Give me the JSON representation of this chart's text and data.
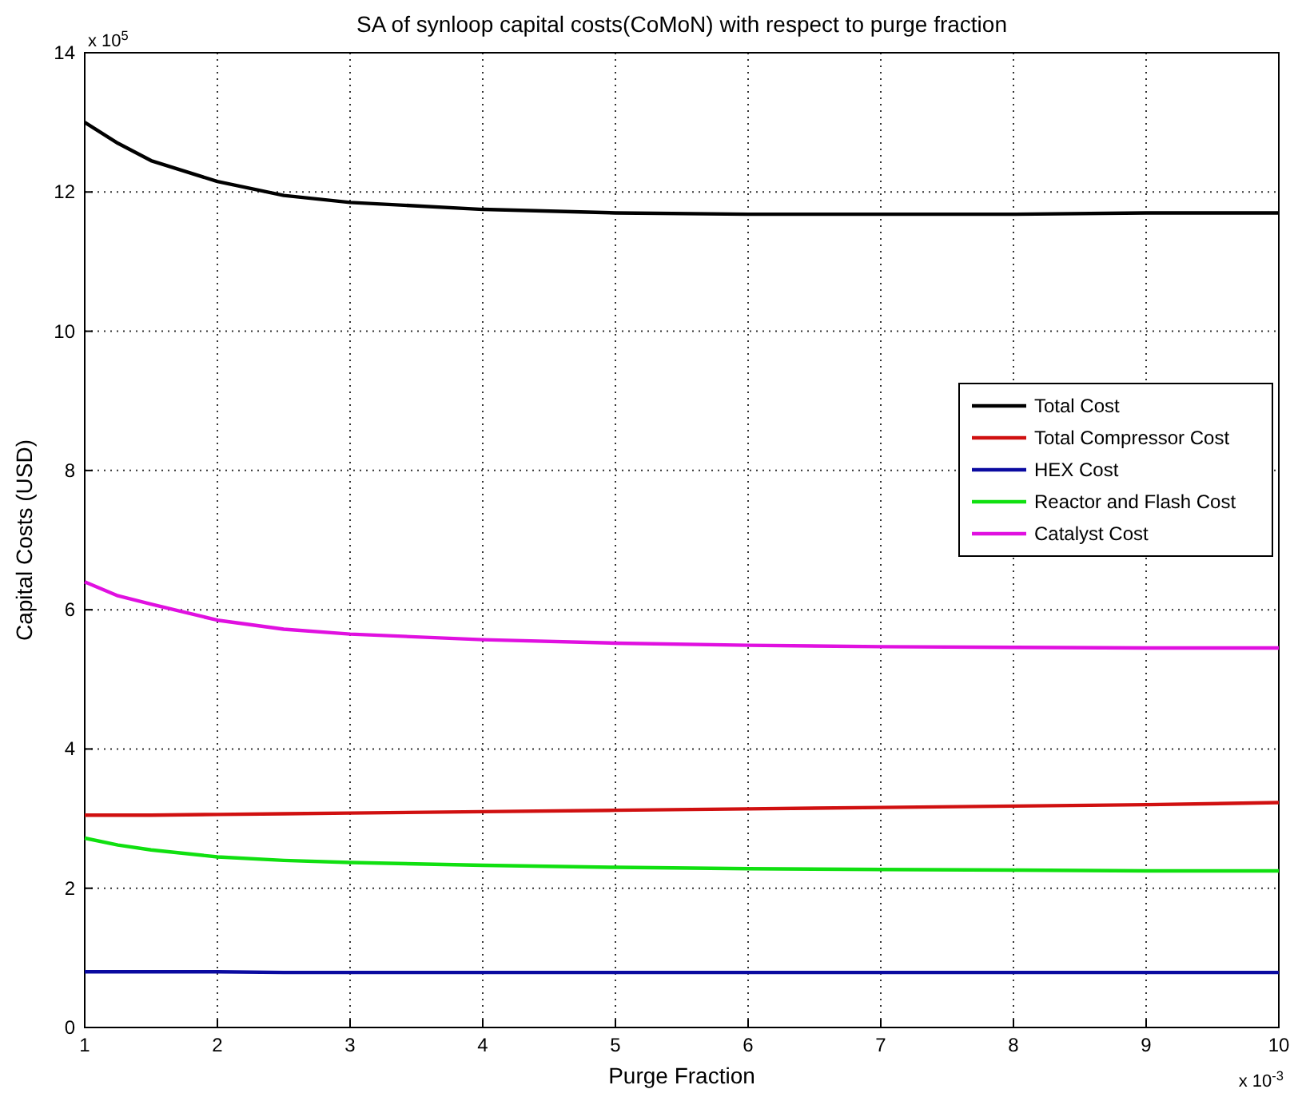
{
  "chart_data": {
    "type": "line",
    "title": "SA of synloop capital costs(CoMoN) with respect to purge fraction",
    "xlabel": "Purge Fraction",
    "ylabel": "Capital Costs (USD)",
    "annotations": [
      "x 10$^{5}$",
      "x 10$^{-3}$"
    ],
    "x": [
      1,
      1.25,
      1.5,
      2,
      2.5,
      3,
      4,
      5,
      6,
      7,
      8,
      9,
      10
    ],
    "series": [
      {
        "name": "Total Cost",
        "color": "#000000",
        "values": [
          13.0,
          12.7,
          12.45,
          12.15,
          11.95,
          11.85,
          11.75,
          11.7,
          11.68,
          11.68,
          11.68,
          11.7,
          11.7
        ]
      },
      {
        "name": "Total Compressor Cost",
        "color": "#d01010",
        "values": [
          3.05,
          3.05,
          3.05,
          3.06,
          3.07,
          3.08,
          3.1,
          3.12,
          3.14,
          3.16,
          3.18,
          3.2,
          3.23
        ]
      },
      {
        "name": "HEX Cost",
        "color": "#0a0aa0",
        "values": [
          0.8,
          0.8,
          0.8,
          0.8,
          0.79,
          0.79,
          0.79,
          0.79,
          0.79,
          0.79,
          0.79,
          0.79,
          0.79
        ]
      },
      {
        "name": "Reactor and Flash Cost",
        "color": "#10e010",
        "values": [
          2.72,
          2.62,
          2.55,
          2.45,
          2.4,
          2.37,
          2.33,
          2.3,
          2.28,
          2.27,
          2.26,
          2.25,
          2.25
        ]
      },
      {
        "name": "Catalyst Cost",
        "color": "#e010e0",
        "values": [
          6.4,
          6.2,
          6.08,
          5.85,
          5.72,
          5.65,
          5.57,
          5.52,
          5.49,
          5.47,
          5.46,
          5.45,
          5.45
        ]
      }
    ],
    "xlim": [
      1,
      10
    ],
    "xticks": [
      1,
      2,
      3,
      4,
      5,
      6,
      7,
      8,
      9,
      10
    ],
    "ylim": [
      0,
      14
    ],
    "yticks": [
      0,
      2,
      4,
      6,
      8,
      10,
      12,
      14
    ],
    "grid": true,
    "legend": "right",
    "marker": "none",
    "line_style": "solid"
  }
}
